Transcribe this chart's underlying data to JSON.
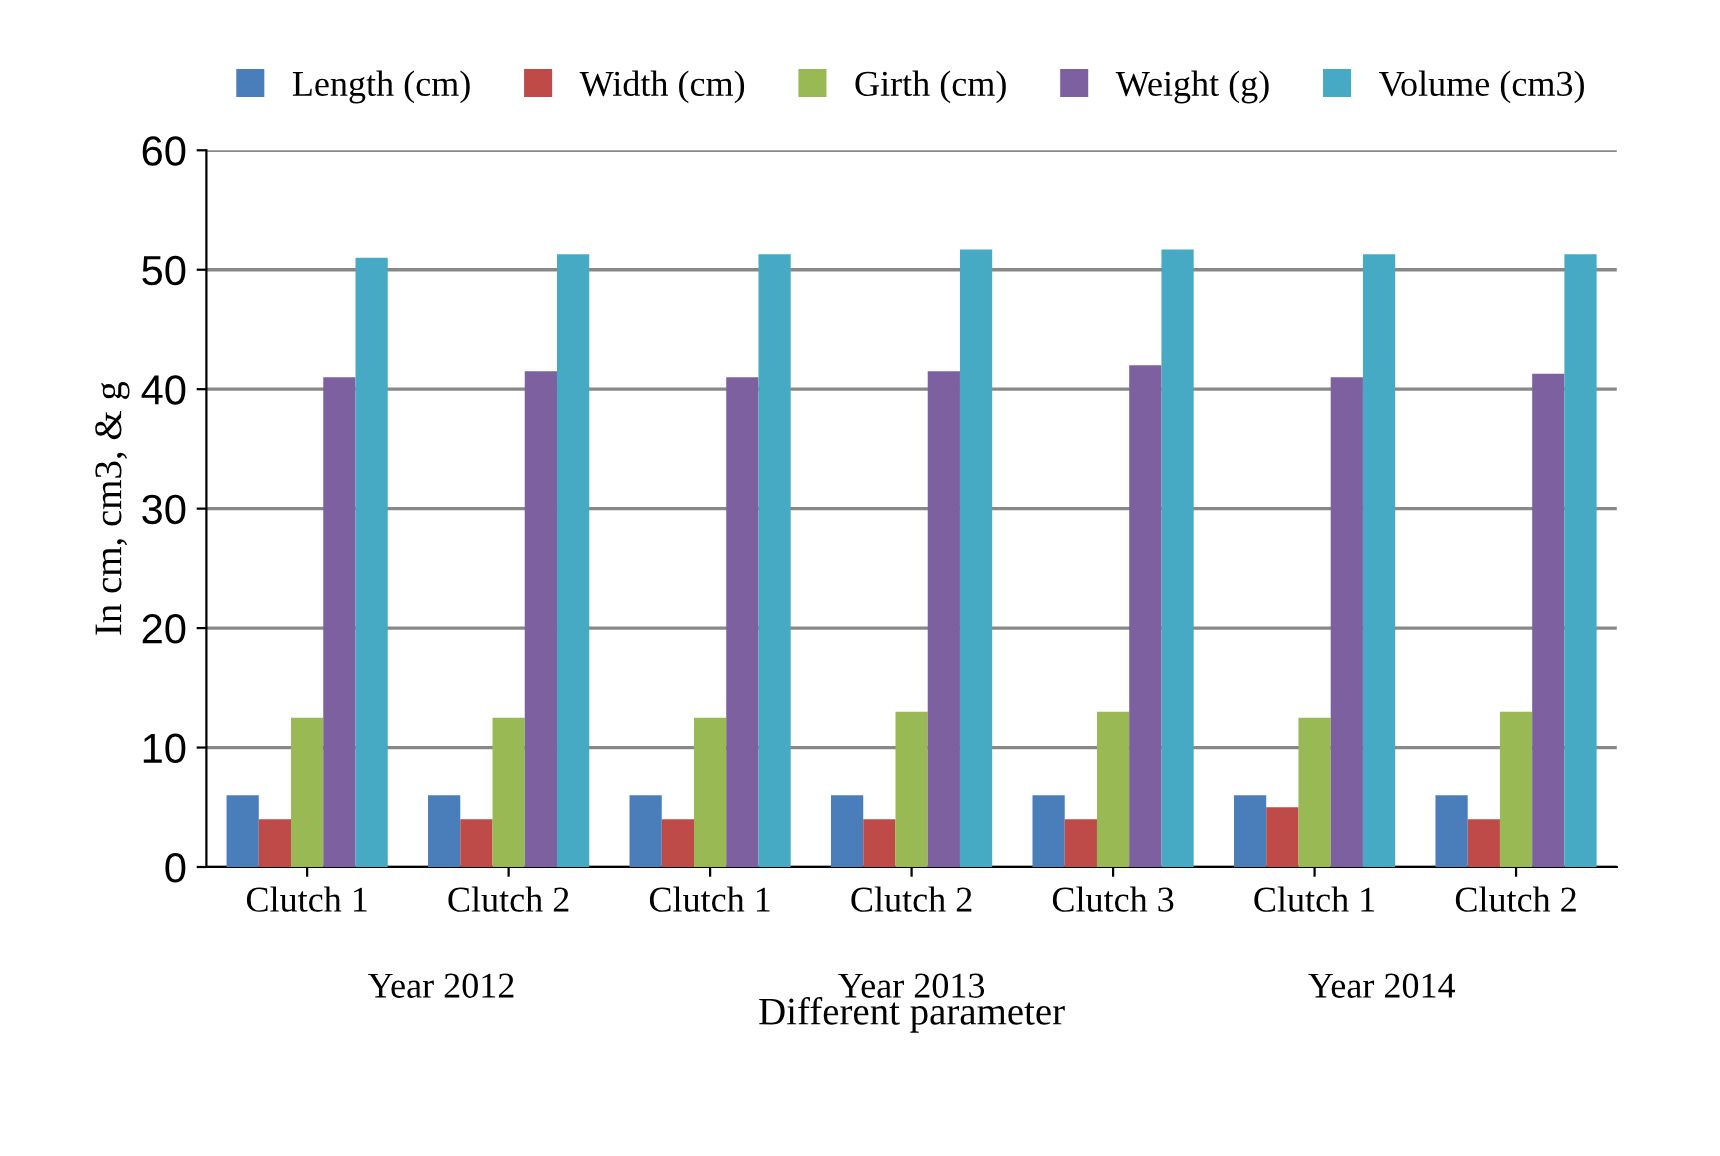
{
  "chart_data": {
    "type": "bar",
    "xlabel": "Different parameter",
    "ylabel": "In cm, cm3, & g",
    "categories": [
      "Clutch 1",
      "Clutch 2",
      "Clutch 1",
      "Clutch 2",
      "Clutch 3",
      "Clutch 1",
      "Clutch 2"
    ],
    "series": [
      {
        "name": "Length (cm)",
        "color": "#4a7ebb",
        "values": [
          6,
          6,
          6,
          6,
          6,
          6,
          6
        ]
      },
      {
        "name": "Width (cm)",
        "color": "#be4b48",
        "values": [
          4,
          4,
          4,
          4,
          4,
          5,
          4
        ]
      },
      {
        "name": "Girth (cm)",
        "color": "#98b954",
        "values": [
          12.5,
          12.5,
          12.5,
          13,
          13,
          12.5,
          13
        ]
      },
      {
        "name": "Weight (g)",
        "color": "#7d60a0",
        "values": [
          41,
          41.5,
          41,
          41.5,
          42,
          41,
          41.3
        ]
      },
      {
        "name": "Volume (cm3)",
        "color": "#46aac5",
        "values": [
          51,
          51.3,
          51.3,
          51.7,
          51.7,
          51.3,
          51.3
        ]
      }
    ],
    "annotations": [
      "Year 2012",
      "Year 2013",
      "Year 2014"
    ],
    "ylim": [
      0,
      60
    ],
    "yticks": [
      0,
      10,
      20,
      30,
      40,
      50,
      60
    ],
    "grid": "y",
    "legend": "top"
  }
}
